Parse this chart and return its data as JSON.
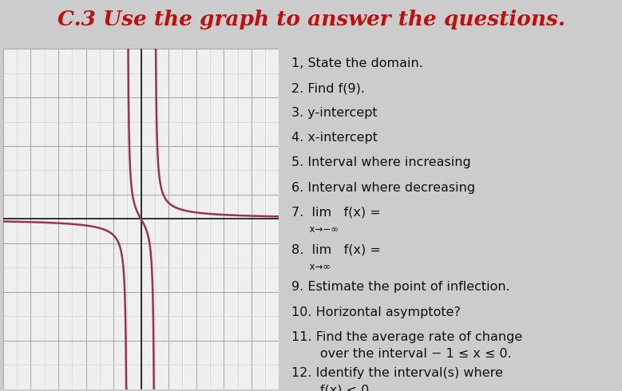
{
  "title": "C.3 Use the graph to answer the questions.",
  "title_color": "#bb1111",
  "title_fontsize": 19,
  "graph_bg": "#efefef",
  "page_bg": "#cccccc",
  "curve_color": "#993355",
  "axis_color": "#111111",
  "grid_major_color": "#999999",
  "grid_minor_color": "#cccccc",
  "xlim": [
    -10,
    10
  ],
  "ylim": [
    -7,
    7
  ],
  "asymptote_x1": -1,
  "asymptote_x2": 1,
  "text_fontsize": 11.5,
  "text_color": "#111111",
  "sub_fontsize": 8.5,
  "lim_fontsize": 14
}
